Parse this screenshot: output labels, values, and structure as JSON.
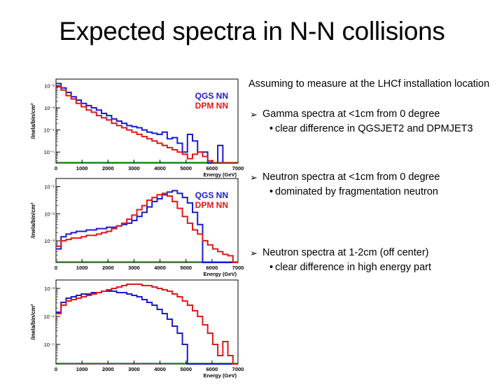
{
  "title": "Expected spectra in N-N collisions",
  "text": {
    "intro": "Assuming to measure at the LHCf installation location",
    "bullets": [
      {
        "main": "Gamma spectra at <1cm from 0 degree",
        "sub": "clear difference in QGSJET2 and DPMJET3"
      },
      {
        "main": "Neutron spectra at <1cm from 0 degree",
        "sub": "dominated by fragmentation neutron"
      },
      {
        "main": "Neutron spectra at 1-2cm (off center)",
        "sub": "clear difference in high energy part"
      }
    ]
  },
  "colors": {
    "qgs": "#1a1ad0",
    "dpm": "#e01818",
    "green": "#2a9a2a"
  },
  "chart_data": [
    {
      "type": "line",
      "xlabel": "Energy (GeV)",
      "ylabel": "/inela/bin/cm²",
      "xlim": [
        0,
        7000
      ],
      "ylim_log": [
        -5.5,
        -1.7
      ],
      "x_ticks": [
        "0",
        "1000",
        "2000",
        "3000",
        "4000",
        "5000",
        "6000",
        "7000"
      ],
      "y_ticks": [
        {
          "v": -2,
          "label": "10⁻²"
        },
        {
          "v": -3,
          "label": "10⁻³"
        },
        {
          "v": -4,
          "label": "10⁻⁴"
        },
        {
          "v": -5,
          "label": "10⁻⁵"
        }
      ],
      "legend": [
        "QGS NN",
        "DPM NN"
      ],
      "legend_position": "top-right",
      "series": [
        {
          "name": "QGS NN",
          "color": "blue",
          "values": [
            -1.9,
            -2.1,
            -2.3,
            -2.5,
            -2.65,
            -2.8,
            -2.9,
            -3.0,
            -3.1,
            -3.25,
            -3.35,
            -3.5,
            -3.6,
            -3.7,
            -3.8,
            -3.85,
            -3.9,
            -4.0,
            -4.1,
            -4.15,
            -4.2,
            -4.1,
            -4.4,
            -4.35,
            -4.6,
            -5.0,
            -4.2,
            -4.5,
            -5.0,
            -5.0,
            -5.5,
            -5.5,
            -4.7,
            -5.5,
            -5.5,
            -5.5
          ]
        },
        {
          "name": "DPM NN",
          "color": "red",
          "values": [
            -2.05,
            -2.2,
            -2.45,
            -2.6,
            -2.8,
            -2.95,
            -3.1,
            -3.2,
            -3.35,
            -3.45,
            -3.55,
            -3.7,
            -3.8,
            -3.9,
            -4.0,
            -4.1,
            -4.2,
            -4.3,
            -4.4,
            -4.5,
            -4.6,
            -4.7,
            -4.8,
            -4.9,
            -5.0,
            -5.1,
            -5.3,
            -5.1,
            -5.0,
            -5.2,
            -5.4,
            -5.5,
            -5.5,
            -5.5,
            -5.5,
            -5.5
          ]
        }
      ]
    },
    {
      "type": "line",
      "xlabel": "Energy (GeV)",
      "ylabel": "/inela/bin/cm²",
      "xlim": [
        0,
        7000
      ],
      "ylim_log": [
        -3.8,
        -0.7
      ],
      "x_ticks": [
        "0",
        "1000",
        "2000",
        "3000",
        "4000",
        "5000",
        "6000",
        "7000"
      ],
      "y_ticks": [
        {
          "v": -1,
          "label": "10⁻¹"
        },
        {
          "v": -2,
          "label": "10⁻²"
        },
        {
          "v": -3,
          "label": "10⁻³"
        }
      ],
      "legend": [
        "QGS NN",
        "DPM NN"
      ],
      "legend_position": "top-right",
      "series": [
        {
          "name": "QGS NN",
          "color": "blue",
          "values": [
            -3.3,
            -2.85,
            -2.75,
            -2.7,
            -2.65,
            -2.65,
            -2.6,
            -2.6,
            -2.55,
            -2.55,
            -2.5,
            -2.5,
            -2.45,
            -2.4,
            -2.35,
            -2.25,
            -2.1,
            -1.95,
            -1.75,
            -1.55,
            -1.45,
            -1.3,
            -1.2,
            -1.15,
            -1.25,
            -1.4,
            -1.6,
            -1.95,
            -2.4,
            -3.8,
            -3.8,
            -3.8,
            -3.8,
            -3.8,
            -3.8,
            -3.8
          ]
        },
        {
          "name": "DPM NN",
          "color": "red",
          "values": [
            -3.2,
            -3.0,
            -2.95,
            -2.9,
            -2.9,
            -2.85,
            -2.8,
            -2.8,
            -2.75,
            -2.7,
            -2.65,
            -2.55,
            -2.45,
            -2.35,
            -2.2,
            -2.05,
            -1.85,
            -1.7,
            -1.5,
            -1.4,
            -1.3,
            -1.25,
            -1.35,
            -1.55,
            -1.8,
            -2.1,
            -2.35,
            -2.6,
            -2.75,
            -3.0,
            -3.15,
            -3.3,
            -3.4,
            -3.5,
            -3.55,
            -3.8
          ]
        }
      ]
    },
    {
      "type": "line",
      "xlabel": "Energy (GeV)",
      "ylabel": "/inela/bin/cm²",
      "xlim": [
        0,
        7000
      ],
      "ylim_log": [
        -5.7,
        -2.7
      ],
      "x_ticks": [
        "0",
        "1000",
        "2000",
        "3000",
        "4000",
        "5000",
        "6000",
        "7000"
      ],
      "y_ticks": [
        {
          "v": -3,
          "label": "10⁻³"
        },
        {
          "v": -4,
          "label": "10⁻⁴"
        },
        {
          "v": -5,
          "label": "10⁻⁵"
        }
      ],
      "series": [
        {
          "name": "",
          "color": "blue",
          "values": [
            -3.85,
            -3.5,
            -3.35,
            -3.3,
            -3.25,
            -3.2,
            -3.2,
            -3.15,
            -3.15,
            -3.1,
            -3.1,
            -3.1,
            -3.15,
            -3.15,
            -3.2,
            -3.25,
            -3.3,
            -3.4,
            -3.5,
            -3.6,
            -3.75,
            -3.9,
            -4.1,
            -4.35,
            -4.6,
            -5.0,
            -5.7,
            -5.7,
            -5.7,
            -5.7,
            -5.7,
            -5.7,
            -5.7,
            -5.7,
            -5.7,
            -5.7
          ]
        },
        {
          "name": "",
          "color": "red",
          "values": [
            -3.9,
            -3.6,
            -3.45,
            -3.4,
            -3.35,
            -3.3,
            -3.25,
            -3.2,
            -3.15,
            -3.1,
            -3.05,
            -3.0,
            -2.95,
            -2.9,
            -2.85,
            -2.85,
            -2.85,
            -2.9,
            -2.9,
            -2.95,
            -3.0,
            -3.05,
            -3.1,
            -3.2,
            -3.3,
            -3.45,
            -3.6,
            -3.8,
            -4.0,
            -4.3,
            -4.6,
            -5.0,
            -5.4,
            -4.9,
            -5.4,
            -5.7
          ]
        }
      ]
    }
  ]
}
